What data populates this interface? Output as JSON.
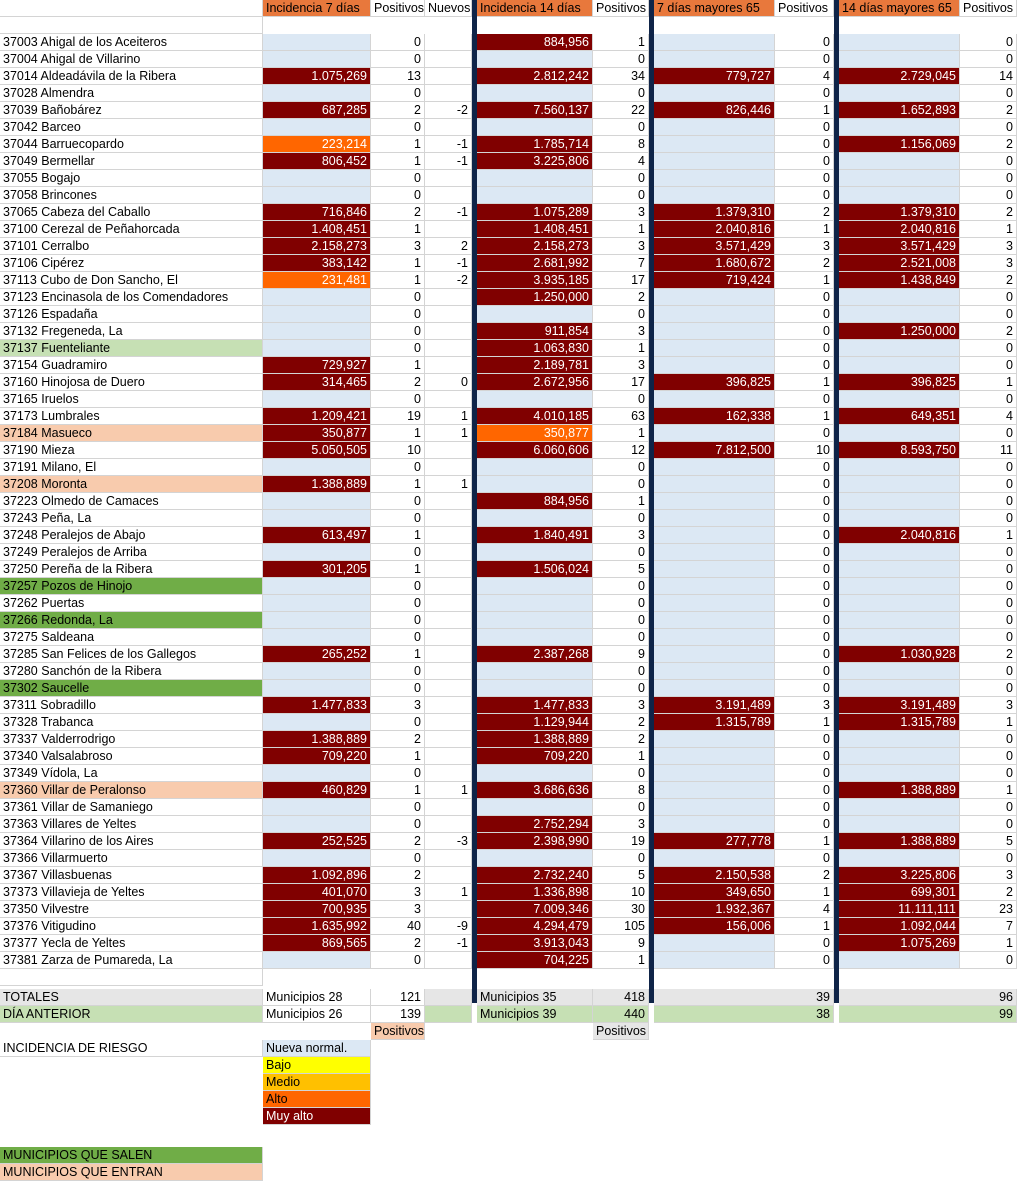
{
  "header": {
    "inc7": "Incidencia 7 días",
    "pos7": "Positivos",
    "nuevos": "Nuevos",
    "inc14": "Incidencia 14 días",
    "pos14": "Positivos",
    "inc7_65": "7 días mayores 65",
    "pos7_65": "Positivos",
    "inc14_65": "14 días mayores 65",
    "pos14_65": "Positivos"
  },
  "rows": [
    {
      "name": "37003 Ahigal de los Aceiteros",
      "i7": "",
      "p7": "0",
      "n": "",
      "i14": "884,956",
      "p14": "1",
      "a7": "",
      "ap7": "0",
      "a14": "",
      "ap14": "0"
    },
    {
      "name": "37004 Ahigal de Villarino",
      "i7": "",
      "p7": "0",
      "n": "",
      "i14": "",
      "p14": "0",
      "a7": "",
      "ap7": "0",
      "a14": "",
      "ap14": "0"
    },
    {
      "name": "37014 Aldeadávila de la Ribera",
      "i7": "1.075,269",
      "p7": "13",
      "n": "",
      "i14": "2.812,242",
      "p14": "34",
      "a7": "779,727",
      "ap7": "4",
      "a14": "2.729,045",
      "ap14": "14"
    },
    {
      "name": "37028 Almendra",
      "i7": "",
      "p7": "0",
      "n": "",
      "i14": "",
      "p14": "0",
      "a7": "",
      "ap7": "0",
      "a14": "",
      "ap14": "0"
    },
    {
      "name": "37039 Bañobárez",
      "i7": "687,285",
      "p7": "2",
      "n": "-2",
      "i14": "7.560,137",
      "p14": "22",
      "a7": "826,446",
      "ap7": "1",
      "a14": "1.652,893",
      "ap14": "2"
    },
    {
      "name": "37042 Barceo",
      "i7": "",
      "p7": "0",
      "n": "",
      "i14": "",
      "p14": "0",
      "a7": "",
      "ap7": "0",
      "a14": "",
      "ap14": "0"
    },
    {
      "name": "37044 Barruecopardo",
      "i7": "223,214",
      "p7": "1",
      "n": "-1",
      "i14": "1.785,714",
      "p14": "8",
      "a7": "",
      "ap7": "0",
      "a14": "1.156,069",
      "ap14": "2"
    },
    {
      "name": "37049 Bermellar",
      "i7": "806,452",
      "p7": "1",
      "n": "-1",
      "i14": "3.225,806",
      "p14": "4",
      "a7": "",
      "ap7": "0",
      "a14": "",
      "ap14": "0"
    },
    {
      "name": "37055 Bogajo",
      "i7": "",
      "p7": "0",
      "n": "",
      "i14": "",
      "p14": "0",
      "a7": "",
      "ap7": "0",
      "a14": "",
      "ap14": "0"
    },
    {
      "name": "37058 Brincones",
      "i7": "",
      "p7": "0",
      "n": "",
      "i14": "",
      "p14": "0",
      "a7": "",
      "ap7": "0",
      "a14": "",
      "ap14": "0"
    },
    {
      "name": "37065 Cabeza del Caballo",
      "i7": "716,846",
      "p7": "2",
      "n": "-1",
      "i14": "1.075,289",
      "p14": "3",
      "a7": "1.379,310",
      "ap7": "2",
      "a14": "1.379,310",
      "ap14": "2"
    },
    {
      "name": "37100 Cerezal de Peñahorcada",
      "i7": "1.408,451",
      "p7": "1",
      "n": "",
      "i14": "1.408,451",
      "p14": "1",
      "a7": "2.040,816",
      "ap7": "1",
      "a14": "2.040,816",
      "ap14": "1"
    },
    {
      "name": "37101 Cerralbo",
      "i7": "2.158,273",
      "p7": "3",
      "n": "2",
      "i14": "2.158,273",
      "p14": "3",
      "a7": "3.571,429",
      "ap7": "3",
      "a14": "3.571,429",
      "ap14": "3"
    },
    {
      "name": "37106 Cipérez",
      "i7": "383,142",
      "p7": "1",
      "n": "-1",
      "i14": "2.681,992",
      "p14": "7",
      "a7": "1.680,672",
      "ap7": "2",
      "a14": "2.521,008",
      "ap14": "3"
    },
    {
      "name": "37113 Cubo de Don Sancho, El",
      "i7": "231,481",
      "p7": "1",
      "n": "-2",
      "i14": "3.935,185",
      "p14": "17",
      "a7": "719,424",
      "ap7": "1",
      "a14": "1.438,849",
      "ap14": "2"
    },
    {
      "name": "37123 Encinasola de los Comendadores",
      "i7": "",
      "p7": "0",
      "n": "",
      "i14": "1.250,000",
      "p14": "2",
      "a7": "",
      "ap7": "0",
      "a14": "",
      "ap14": "0"
    },
    {
      "name": "37126 Espadaña",
      "i7": "",
      "p7": "0",
      "n": "",
      "i14": "",
      "p14": "0",
      "a7": "",
      "ap7": "0",
      "a14": "",
      "ap14": "0"
    },
    {
      "name": "37132 Fregeneda, La",
      "i7": "",
      "p7": "0",
      "n": "",
      "i14": "911,854",
      "p14": "3",
      "a7": "",
      "ap7": "0",
      "a14": "1.250,000",
      "ap14": "2"
    },
    {
      "name": "37137 Fuenteliante",
      "i7": "",
      "p7": "0",
      "n": "",
      "i14": "1.063,830",
      "p14": "1",
      "a7": "",
      "ap7": "0",
      "a14": "",
      "ap14": "0"
    },
    {
      "name": "37154 Guadramiro",
      "i7": "729,927",
      "p7": "1",
      "n": "",
      "i14": "2.189,781",
      "p14": "3",
      "a7": "",
      "ap7": "0",
      "a14": "",
      "ap14": "0"
    },
    {
      "name": "37160 Hinojosa de Duero",
      "i7": "314,465",
      "p7": "2",
      "n": "0",
      "i14": "2.672,956",
      "p14": "17",
      "a7": "396,825",
      "ap7": "1",
      "a14": "396,825",
      "ap14": "1"
    },
    {
      "name": "37165 Iruelos",
      "i7": "",
      "p7": "0",
      "n": "",
      "i14": "",
      "p14": "0",
      "a7": "",
      "ap7": "0",
      "a14": "",
      "ap14": "0"
    },
    {
      "name": "37173 Lumbrales",
      "i7": "1.209,421",
      "p7": "19",
      "n": "1",
      "i14": "4.010,185",
      "p14": "63",
      "a7": "162,338",
      "ap7": "1",
      "a14": "649,351",
      "ap14": "4"
    },
    {
      "name": "37184 Masueco",
      "i7": "350,877",
      "p7": "1",
      "n": "1",
      "i14": "350,877",
      "p14": "1",
      "a7": "",
      "ap7": "0",
      "a14": "",
      "ap14": "0"
    },
    {
      "name": "37190 Mieza",
      "i7": "5.050,505",
      "p7": "10",
      "n": "",
      "i14": "6.060,606",
      "p14": "12",
      "a7": "7.812,500",
      "ap7": "10",
      "a14": "8.593,750",
      "ap14": "11"
    },
    {
      "name": "37191 Milano, El",
      "i7": "",
      "p7": "0",
      "n": "",
      "i14": "",
      "p14": "0",
      "a7": "",
      "ap7": "0",
      "a14": "",
      "ap14": "0"
    },
    {
      "name": "37208 Moronta",
      "i7": "1.388,889",
      "p7": "1",
      "n": "1",
      "i14": "",
      "p14": "0",
      "a7": "",
      "ap7": "0",
      "a14": "",
      "ap14": "0"
    },
    {
      "name": "37223 Olmedo de Camaces",
      "i7": "",
      "p7": "0",
      "n": "",
      "i14": "884,956",
      "p14": "1",
      "a7": "",
      "ap7": "0",
      "a14": "",
      "ap14": "0"
    },
    {
      "name": "37243 Peña, La",
      "i7": "",
      "p7": "0",
      "n": "",
      "i14": "",
      "p14": "0",
      "a7": "",
      "ap7": "0",
      "a14": "",
      "ap14": "0"
    },
    {
      "name": "37248 Peralejos de Abajo",
      "i7": "613,497",
      "p7": "1",
      "n": "",
      "i14": "1.840,491",
      "p14": "3",
      "a7": "",
      "ap7": "0",
      "a14": "2.040,816",
      "ap14": "1"
    },
    {
      "name": "37249 Peralejos de Arriba",
      "i7": "",
      "p7": "0",
      "n": "",
      "i14": "",
      "p14": "0",
      "a7": "",
      "ap7": "0",
      "a14": "",
      "ap14": "0"
    },
    {
      "name": "37250 Pereña de la Ribera",
      "i7": "301,205",
      "p7": "1",
      "n": "",
      "i14": "1.506,024",
      "p14": "5",
      "a7": "",
      "ap7": "0",
      "a14": "",
      "ap14": "0"
    },
    {
      "name": "37257 Pozos de Hinojo",
      "i7": "",
      "p7": "0",
      "n": "",
      "i14": "",
      "p14": "0",
      "a7": "",
      "ap7": "0",
      "a14": "",
      "ap14": "0"
    },
    {
      "name": "37262 Puertas",
      "i7": "",
      "p7": "0",
      "n": "",
      "i14": "",
      "p14": "0",
      "a7": "",
      "ap7": "0",
      "a14": "",
      "ap14": "0"
    },
    {
      "name": "37266 Redonda, La",
      "i7": "",
      "p7": "0",
      "n": "",
      "i14": "",
      "p14": "0",
      "a7": "",
      "ap7": "0",
      "a14": "",
      "ap14": "0"
    },
    {
      "name": "37275 Saldeana",
      "i7": "",
      "p7": "0",
      "n": "",
      "i14": "",
      "p14": "0",
      "a7": "",
      "ap7": "0",
      "a14": "",
      "ap14": "0"
    },
    {
      "name": "37285 San Felices de los Gallegos",
      "i7": "265,252",
      "p7": "1",
      "n": "",
      "i14": "2.387,268",
      "p14": "9",
      "a7": "",
      "ap7": "0",
      "a14": "1.030,928",
      "ap14": "2"
    },
    {
      "name": "37280 Sanchón de la Ribera",
      "i7": "",
      "p7": "0",
      "n": "",
      "i14": "",
      "p14": "0",
      "a7": "",
      "ap7": "0",
      "a14": "",
      "ap14": "0"
    },
    {
      "name": "37302 Saucelle",
      "i7": "",
      "p7": "0",
      "n": "",
      "i14": "",
      "p14": "0",
      "a7": "",
      "ap7": "0",
      "a14": "",
      "ap14": "0"
    },
    {
      "name": "37311 Sobradillo",
      "i7": "1.477,833",
      "p7": "3",
      "n": "",
      "i14": "1.477,833",
      "p14": "3",
      "a7": "3.191,489",
      "ap7": "3",
      "a14": "3.191,489",
      "ap14": "3"
    },
    {
      "name": "37328 Trabanca",
      "i7": "",
      "p7": "0",
      "n": "",
      "i14": "1.129,944",
      "p14": "2",
      "a7": "1.315,789",
      "ap7": "1",
      "a14": "1.315,789",
      "ap14": "1"
    },
    {
      "name": "37337 Valderrodrigo",
      "i7": "1.388,889",
      "p7": "2",
      "n": "",
      "i14": "1.388,889",
      "p14": "2",
      "a7": "",
      "ap7": "0",
      "a14": "",
      "ap14": "0"
    },
    {
      "name": "37340 Valsalabroso",
      "i7": "709,220",
      "p7": "1",
      "n": "",
      "i14": "709,220",
      "p14": "1",
      "a7": "",
      "ap7": "0",
      "a14": "",
      "ap14": "0"
    },
    {
      "name": "37349 Vídola, La",
      "i7": "",
      "p7": "0",
      "n": "",
      "i14": "",
      "p14": "0",
      "a7": "",
      "ap7": "0",
      "a14": "",
      "ap14": "0"
    },
    {
      "name": "37360 Villar de Peralonso",
      "i7": "460,829",
      "p7": "1",
      "n": "1",
      "i14": "3.686,636",
      "p14": "8",
      "a7": "",
      "ap7": "0",
      "a14": "1.388,889",
      "ap14": "1"
    },
    {
      "name": "37361 Villar de Samaniego",
      "i7": "",
      "p7": "0",
      "n": "",
      "i14": "",
      "p14": "0",
      "a7": "",
      "ap7": "0",
      "a14": "",
      "ap14": "0"
    },
    {
      "name": "37363 Villares de Yeltes",
      "i7": "",
      "p7": "0",
      "n": "",
      "i14": "2.752,294",
      "p14": "3",
      "a7": "",
      "ap7": "0",
      "a14": "",
      "ap14": "0"
    },
    {
      "name": "37364 Villarino de los Aires",
      "i7": "252,525",
      "p7": "2",
      "n": "-3",
      "i14": "2.398,990",
      "p14": "19",
      "a7": "277,778",
      "ap7": "1",
      "a14": "1.388,889",
      "ap14": "5"
    },
    {
      "name": "37366 Villarmuerto",
      "i7": "",
      "p7": "0",
      "n": "",
      "i14": "",
      "p14": "0",
      "a7": "",
      "ap7": "0",
      "a14": "",
      "ap14": "0"
    },
    {
      "name": "37367 Villasbuenas",
      "i7": "1.092,896",
      "p7": "2",
      "n": "",
      "i14": "2.732,240",
      "p14": "5",
      "a7": "2.150,538",
      "ap7": "2",
      "a14": "3.225,806",
      "ap14": "3"
    },
    {
      "name": "37373 Villavieja de Yeltes",
      "i7": "401,070",
      "p7": "3",
      "n": "1",
      "i14": "1.336,898",
      "p14": "10",
      "a7": "349,650",
      "ap7": "1",
      "a14": "699,301",
      "ap14": "2"
    },
    {
      "name": "37350 Vilvestre",
      "i7": "700,935",
      "p7": "3",
      "n": "",
      "i14": "7.009,346",
      "p14": "30",
      "a7": "1.932,367",
      "ap7": "4",
      "a14": "11.111,111",
      "ap14": "23"
    },
    {
      "name": "37376 Vitigudino",
      "i7": "1.635,992",
      "p7": "40",
      "n": "-9",
      "i14": "4.294,479",
      "p14": "105",
      "a7": "156,006",
      "ap7": "1",
      "a14": "1.092,044",
      "ap14": "7"
    },
    {
      "name": "37377 Yecla de Yeltes",
      "i7": "869,565",
      "p7": "2",
      "n": "-1",
      "i14": "3.913,043",
      "p14": "9",
      "a7": "",
      "ap7": "0",
      "a14": "1.075,269",
      "ap14": "1"
    },
    {
      "name": "37381 Zarza de Pumareda, La",
      "i7": "",
      "p7": "0",
      "n": "",
      "i14": "704,225",
      "p14": "1",
      "a7": "",
      "ap7": "0",
      "a14": "",
      "ap14": "0"
    }
  ],
  "totals": {
    "label": "TOTALES",
    "muni7": "Municipios 28",
    "p7": "121",
    "muni14": "Municipios 35",
    "p14": "418",
    "ap7": "39",
    "ap14": "96"
  },
  "previous": {
    "label": "DÍA ANTERIOR",
    "muni7": "Municipios 26",
    "p7": "139",
    "muni14": "Municipios 39",
    "p14": "440",
    "ap7": "38",
    "ap14": "99"
  },
  "positivos_note_1": "Positivos",
  "positivos_note_2": "Positivos",
  "legend": {
    "title": "INCIDENCIA DE RIESGO",
    "levels": [
      {
        "label": "Nueva normal.",
        "color": "#dce8f4",
        "text": "#000000"
      },
      {
        "label": "Bajo",
        "color": "#ffff00",
        "text": "#000000"
      },
      {
        "label": "Medio",
        "color": "#ffc000",
        "text": "#000000"
      },
      {
        "label": "Alto",
        "color": "#ff6600",
        "text": "#000000"
      },
      {
        "label": "Muy alto",
        "color": "#800000",
        "text": "#ffffff"
      }
    ]
  },
  "footer": {
    "salen": "MUNICIPIOS QUE SALEN",
    "entran": "MUNICIPIOS QUE ENTRAN"
  },
  "colors": {
    "header": "#f4a460",
    "header_accent": "#e8783c",
    "muy_alto": "#800000",
    "alto": "#ff6600",
    "nueva_normal": "#dce8f4",
    "sale_light": "#c6e0b4",
    "sale_dark": "#70ad47",
    "entra": "#f8cbad",
    "totals": "#e6e6e6",
    "previous": "#c6e0b4",
    "separator": "#0f2448"
  },
  "row_highlights": {
    "37137 Fuenteliante": "sale_light",
    "37257 Pozos de Hinojo": "sale_dark",
    "37266 Redonda, La": "sale_dark",
    "37302 Saucelle": "sale_dark",
    "37184 Masueco": "entra",
    "37208 Moronta": "entra",
    "37360 Villar de Peralonso": "entra"
  },
  "alto_cells": {
    "37044 Barruecopardo": [
      "i7"
    ],
    "37113 Cubo de Don Sancho, El": [
      "i7"
    ],
    "37184 Masueco": [
      "i14"
    ]
  }
}
